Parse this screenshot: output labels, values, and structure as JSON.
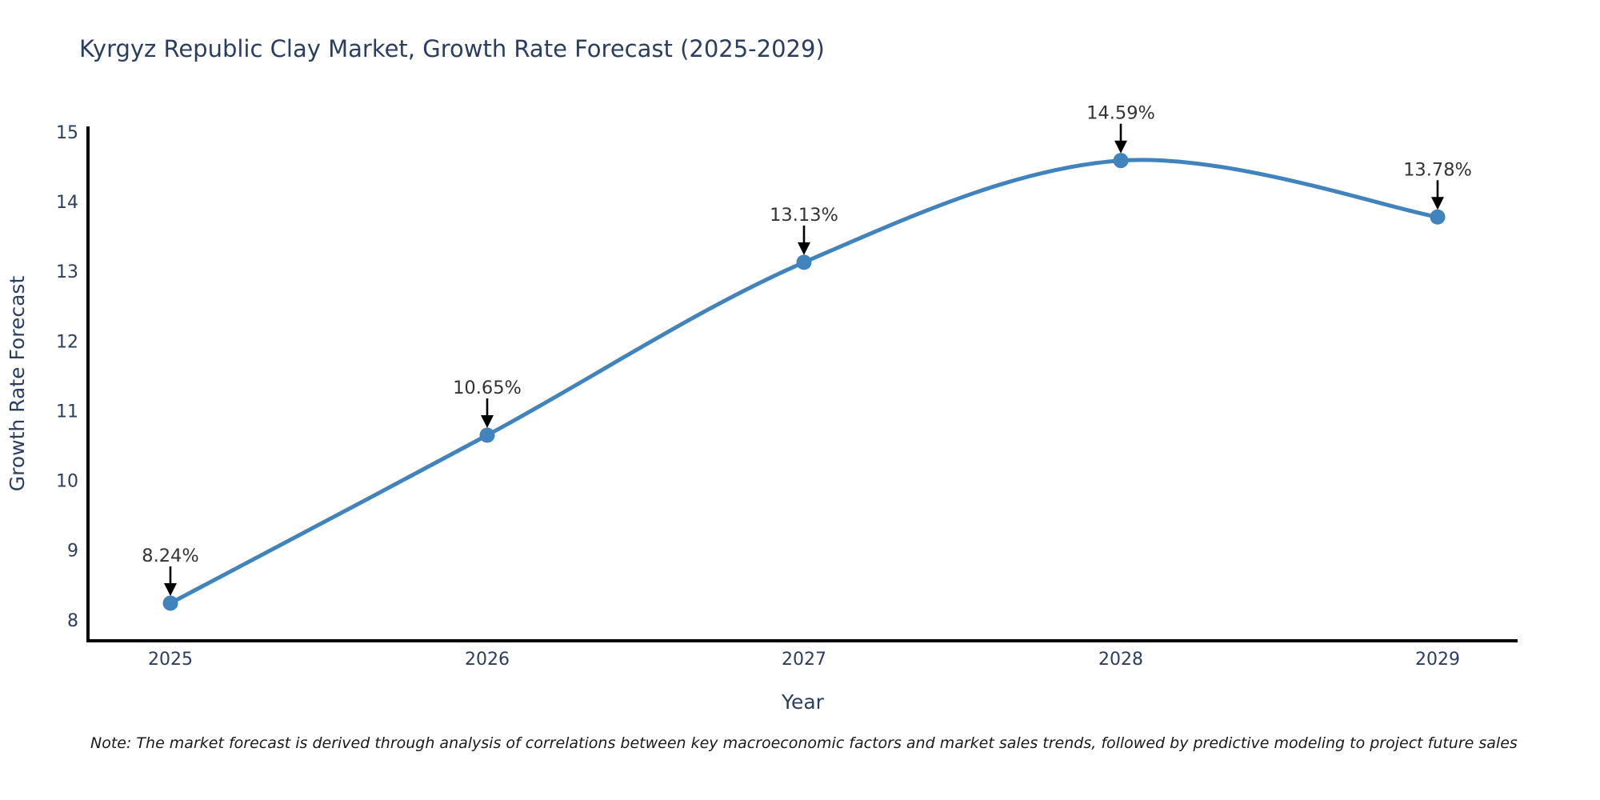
{
  "title": "Kyrgyz Republic Clay Market, Growth Rate Forecast (2025-2029)",
  "note": "Note: The market forecast is derived through analysis of correlations between key macroeconomic factors and market sales trends, followed by predictive modeling to project future sales",
  "colors": {
    "background": "#ffffff",
    "line": "#4083bd",
    "marker": "#4083bd",
    "axis_line": "#000000",
    "title_text": "#2a3f5f",
    "tick_text": "#2a3f5f",
    "axis_title_text": "#2a3f5f",
    "annotation_text": "#333333",
    "annotation_arrow": "#000000",
    "note_text": "#1a1a1a"
  },
  "chart_data": {
    "type": "line",
    "title": "Kyrgyz Republic Clay Market, Growth Rate Forecast (2025-2029)",
    "xlabel": "Year",
    "ylabel": "Growth Rate Forecast",
    "x": [
      2025,
      2026,
      2027,
      2028,
      2029
    ],
    "y": [
      8.24,
      10.65,
      13.13,
      14.59,
      13.78
    ],
    "point_labels": [
      "8.24%",
      "10.65%",
      "13.13%",
      "14.59%",
      "13.78%"
    ],
    "yticks": [
      8,
      9,
      10,
      11,
      12,
      13,
      14,
      15
    ],
    "ylim": [
      7.7,
      15.08
    ],
    "line_shape": "spline",
    "grid": false,
    "legend": "none",
    "annotations": "value labels with down arrows above each point"
  }
}
